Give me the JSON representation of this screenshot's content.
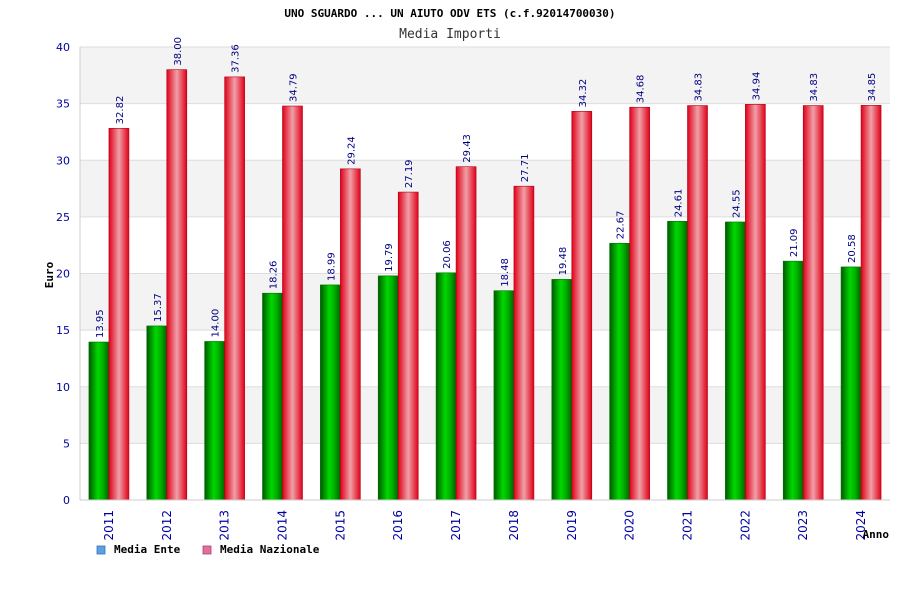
{
  "chart_data": {
    "type": "bar",
    "title": "UNO SGUARDO ... UN AIUTO ODV ETS (c.f.92014700030)",
    "subtitle": "Media Importi",
    "xlabel": "Anno",
    "ylabel": "Euro",
    "ylim": [
      0,
      40
    ],
    "yticks": [
      0,
      5,
      10,
      15,
      20,
      25,
      30,
      35,
      40
    ],
    "categories": [
      "2011",
      "2012",
      "2013",
      "2014",
      "2015",
      "2016",
      "2017",
      "2018",
      "2019",
      "2020",
      "2021",
      "2022",
      "2023",
      "2024"
    ],
    "series": [
      {
        "name": "Media Ente",
        "color": "#00c000",
        "values": [
          13.95,
          15.37,
          14.0,
          18.26,
          18.99,
          19.79,
          20.06,
          18.48,
          19.48,
          22.67,
          24.61,
          24.55,
          21.09,
          20.58
        ],
        "labels": [
          "13.95",
          "15.37",
          "14.00",
          "18.26",
          "18.99",
          "19.79",
          "20.06",
          "18.48",
          "19.48",
          "22.67",
          "24.61",
          "24.55",
          "21.09",
          "20.58"
        ]
      },
      {
        "name": "Media Nazionale",
        "color": "#e8102a",
        "values": [
          32.82,
          38.0,
          37.36,
          34.79,
          29.24,
          27.19,
          29.43,
          27.71,
          34.32,
          34.68,
          34.83,
          34.94,
          34.83,
          34.85
        ],
        "labels": [
          "32.82",
          "38.00",
          "37.36",
          "34.79",
          "29.24",
          "27.19",
          "29.43",
          "27.71",
          "34.32",
          "34.68",
          "34.83",
          "34.94",
          "34.83",
          "34.85"
        ]
      }
    ],
    "legend": {
      "position": "bottom-left",
      "items": [
        {
          "label": "Media Ente",
          "color": "#5aa0e6"
        },
        {
          "label": "Media Nazionale",
          "color": "#e070a0"
        }
      ]
    },
    "grid": true
  }
}
